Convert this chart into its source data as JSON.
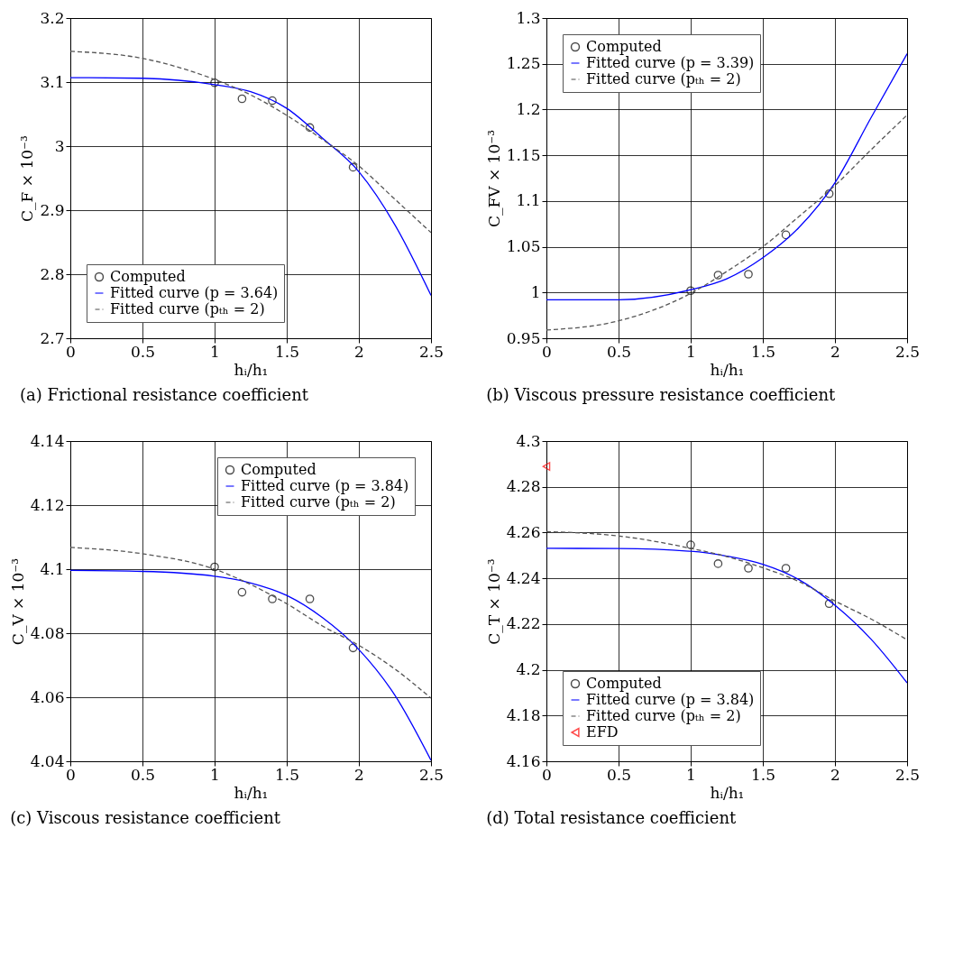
{
  "chart_data": [
    {
      "type": "line",
      "title": "(a)  Frictional resistance coefficient",
      "xlabel": "hᵢ/h₁",
      "ylabel": "C_F × 10⁻³",
      "xlim": [
        0,
        2.5
      ],
      "ylim": [
        2.7,
        3.2
      ],
      "xticks": [
        0,
        0.5,
        1,
        1.5,
        2,
        2.5
      ],
      "yticks": [
        2.7,
        2.8,
        2.9,
        3,
        3.1,
        3.2
      ],
      "grid": true,
      "legend": "bottom left",
      "series": [
        {
          "name": "Computed",
          "type": "scatter",
          "marker": "circle",
          "color": "#000000",
          "x": [
            1,
            1.19,
            1.4,
            1.66,
            1.96
          ],
          "values": [
            3.099,
            3.074,
            3.071,
            3.029,
            2.967
          ]
        },
        {
          "name": "Fitted curve (p = 3.64)",
          "color": "#0000ff",
          "line_style": "solid",
          "x": [
            0,
            0.5,
            1,
            1.25,
            1.5,
            1.75,
            2,
            2.25,
            2.5
          ],
          "values": [
            3.107,
            3.106,
            3.096,
            3.085,
            3.059,
            3.012,
            2.96,
            2.877,
            2.767
          ]
        },
        {
          "name": "Fitted curve (pₜₕ = 2)",
          "color": "#555555",
          "line_style": "dashed",
          "x": [
            0,
            0.5,
            1,
            1.25,
            1.5,
            1.75,
            2,
            2.25,
            2.5
          ],
          "values": [
            3.148,
            3.137,
            3.104,
            3.08,
            3.048,
            3.01,
            2.969,
            2.917,
            2.865
          ]
        }
      ]
    },
    {
      "type": "line",
      "title": "(b)  Viscous pressure resistance coefficient",
      "xlabel": "hᵢ/h₁",
      "ylabel": "C_FV × 10⁻³",
      "xlim": [
        0,
        2.5
      ],
      "ylim": [
        0.95,
        1.3
      ],
      "xticks": [
        0,
        0.5,
        1,
        1.5,
        2,
        2.5
      ],
      "yticks": [
        0.95,
        1,
        1.05,
        1.1,
        1.15,
        1.2,
        1.25,
        1.3
      ],
      "grid": true,
      "legend": "top left",
      "series": [
        {
          "name": "Computed",
          "type": "scatter",
          "marker": "circle",
          "color": "#000000",
          "x": [
            1,
            1.19,
            1.4,
            1.66,
            1.96
          ],
          "values": [
            1.002,
            1.019,
            1.02,
            1.063,
            1.108
          ]
        },
        {
          "name": "Fitted curve (p = 3.39)",
          "color": "#0000ff",
          "line_style": "solid",
          "x": [
            0,
            0.5,
            1,
            1.25,
            1.5,
            1.75,
            2,
            2.25,
            2.5
          ],
          "values": [
            0.992,
            0.992,
            1.003,
            1.015,
            1.038,
            1.071,
            1.12,
            1.191,
            1.261
          ]
        },
        {
          "name": "Fitted curve (pₜₕ = 2)",
          "color": "#555555",
          "line_style": "dashed",
          "x": [
            0,
            0.5,
            1,
            1.25,
            1.5,
            1.75,
            2,
            2.25,
            2.5
          ],
          "values": [
            0.959,
            0.969,
            0.999,
            1.023,
            1.05,
            1.083,
            1.117,
            1.156,
            1.194
          ]
        }
      ]
    },
    {
      "type": "line",
      "title": "(c)  Viscous resistance coefficient",
      "xlabel": "hᵢ/h₁",
      "ylabel": "C_V × 10⁻³",
      "xlim": [
        0,
        2.5
      ],
      "ylim": [
        4.04,
        4.14
      ],
      "xticks": [
        0,
        0.5,
        1,
        1.5,
        2,
        2.5
      ],
      "yticks": [
        4.04,
        4.06,
        4.08,
        4.1,
        4.12,
        4.14
      ],
      "grid": true,
      "legend": "top right",
      "series": [
        {
          "name": "Computed",
          "type": "scatter",
          "marker": "circle",
          "color": "#000000",
          "x": [
            1,
            1.19,
            1.4,
            1.66,
            1.96
          ],
          "values": [
            4.1007,
            4.0928,
            4.0907,
            4.0907,
            4.0754
          ]
        },
        {
          "name": "Fitted curve (p = 3.84)",
          "color": "#0000ff",
          "line_style": "solid",
          "x": [
            0,
            0.5,
            1,
            1.25,
            1.5,
            1.75,
            2,
            2.25,
            2.5
          ],
          "values": [
            4.0996,
            4.0993,
            4.0978,
            4.0957,
            4.0918,
            4.0848,
            4.0749,
            4.0606,
            4.0403
          ]
        },
        {
          "name": "Fitted curve (pₜₕ = 2)",
          "color": "#555555",
          "line_style": "dashed",
          "x": [
            0,
            0.5,
            1,
            1.25,
            1.5,
            1.75,
            2,
            2.25,
            2.5
          ],
          "values": [
            4.1068,
            4.1048,
            4.1,
            4.0952,
            4.0892,
            4.0822,
            4.0762,
            4.0688,
            4.0597
          ]
        }
      ]
    },
    {
      "type": "line",
      "title": "(d)  Total resistance coefficient",
      "xlabel": "hᵢ/h₁",
      "ylabel": "C_T × 10⁻³",
      "xlim": [
        0,
        2.5
      ],
      "ylim": [
        4.16,
        4.3
      ],
      "xticks": [
        0,
        0.5,
        1,
        1.5,
        2,
        2.5
      ],
      "yticks": [
        4.16,
        4.18,
        4.2,
        4.22,
        4.24,
        4.26,
        4.28,
        4.3
      ],
      "grid": true,
      "legend": "bottom left",
      "series": [
        {
          "name": "Computed",
          "type": "scatter",
          "marker": "circle",
          "color": "#000000",
          "x": [
            1,
            1.19,
            1.4,
            1.66,
            1.96
          ],
          "values": [
            4.2546,
            4.2464,
            4.2444,
            4.2444,
            4.2289
          ]
        },
        {
          "name": "Fitted curve (p = 3.84)",
          "color": "#0000ff",
          "line_style": "solid",
          "x": [
            0,
            0.5,
            1,
            1.25,
            1.5,
            1.75,
            2,
            2.25,
            2.5
          ],
          "values": [
            4.2531,
            4.253,
            4.2518,
            4.2497,
            4.2461,
            4.2394,
            4.2282,
            4.2134,
            4.1943
          ]
        },
        {
          "name": "Fitted curve (pₜₕ = 2)",
          "color": "#555555",
          "line_style": "dashed",
          "x": [
            0,
            0.5,
            1,
            1.25,
            1.5,
            1.75,
            2,
            2.25,
            2.5
          ],
          "values": [
            4.2604,
            4.2585,
            4.2531,
            4.2495,
            4.2446,
            4.2386,
            4.2301,
            4.2222,
            4.2131
          ]
        },
        {
          "name": "EFD",
          "type": "scatter",
          "marker": "triangle",
          "color": "#ff0000",
          "x": [
            0
          ],
          "values": [
            4.2889
          ]
        }
      ]
    }
  ]
}
